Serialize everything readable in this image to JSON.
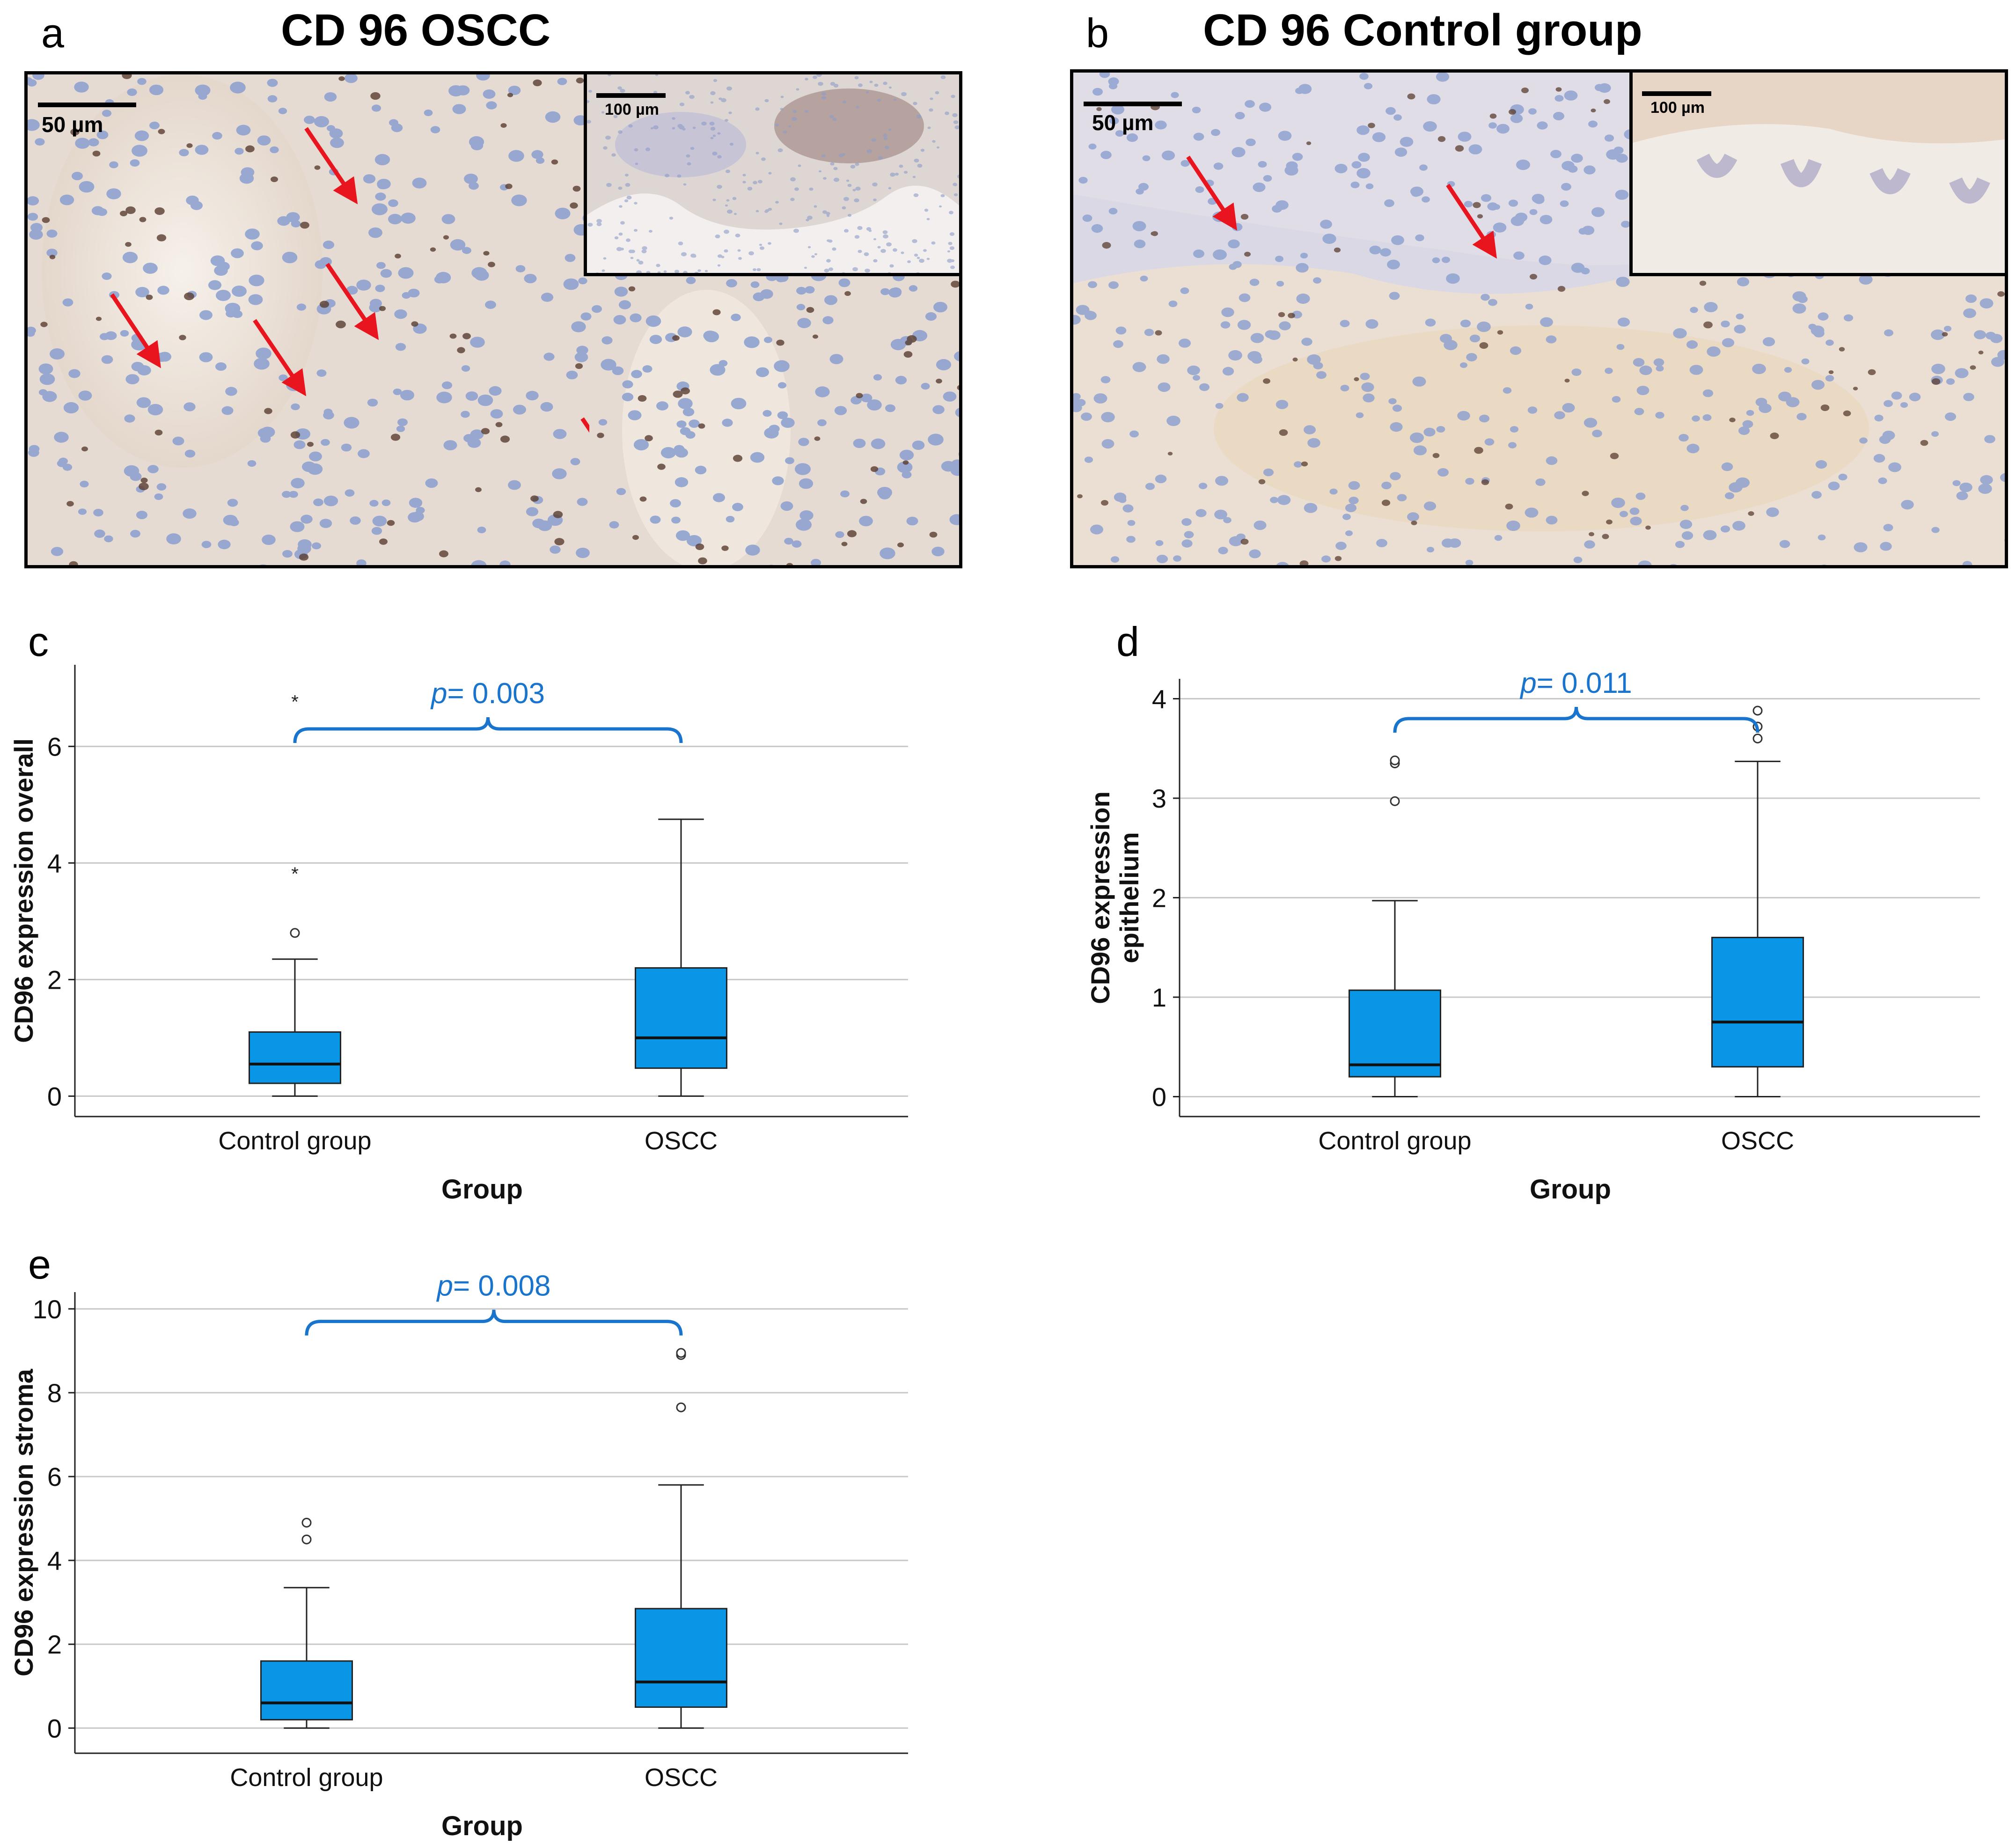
{
  "panels": {
    "a": {
      "letter": "a",
      "title": "CD 96 OSCC",
      "scale_main": "50 µm",
      "scale_inset": "100 µm"
    },
    "b": {
      "letter": "b",
      "title": "CD 96 Control group",
      "scale_main": "50 µm",
      "scale_inset": "100 µm"
    },
    "c": {
      "letter": "c"
    },
    "d": {
      "letter": "d"
    },
    "e": {
      "letter": "e"
    }
  },
  "colors": {
    "box_fill": "#0a96e6",
    "pvalue": "#1874cd",
    "arrow": "#e8141e",
    "tissue_bg": "#ece4dc",
    "nuclei": "#7b93c9",
    "brown_stain": "#6b4a3a"
  },
  "chart_data": [
    {
      "id": "c",
      "type": "box",
      "title": "",
      "xlabel": "Group",
      "ylabel": "CD96 expression overall",
      "categories": [
        "Control group",
        "OSCC"
      ],
      "ylim": [
        -0.35,
        7.4
      ],
      "yticks": [
        0,
        2,
        4,
        6
      ],
      "boxes": [
        {
          "whislo": 0.0,
          "q1": 0.22,
          "med": 0.55,
          "q3": 1.1,
          "whishi": 2.35,
          "outliers": [
            2.8
          ],
          "extremes": [
            3.85,
            6.8
          ]
        },
        {
          "whislo": 0.0,
          "q1": 0.48,
          "med": 1.0,
          "q3": 2.2,
          "whishi": 4.75,
          "outliers": [],
          "extremes": []
        }
      ],
      "bracket_y": 6.3,
      "pvalue": {
        "italic": "p",
        "rest": "= 0.003"
      },
      "grid": true
    },
    {
      "id": "d",
      "type": "box",
      "title": "",
      "xlabel": "Group",
      "ylabel_lines": [
        "CD96 expression",
        "epithelium"
      ],
      "categories": [
        "Control group",
        "OSCC"
      ],
      "ylim": [
        -0.2,
        4.2
      ],
      "yticks": [
        0,
        1,
        2,
        3,
        4
      ],
      "boxes": [
        {
          "whislo": 0.0,
          "q1": 0.2,
          "med": 0.32,
          "q3": 1.07,
          "whishi": 1.97,
          "outliers": [
            2.97,
            3.35,
            3.38
          ],
          "extremes": []
        },
        {
          "whislo": 0.0,
          "q1": 0.3,
          "med": 0.75,
          "q3": 1.6,
          "whishi": 3.37,
          "outliers": [
            3.6,
            3.72,
            3.88
          ],
          "extremes": []
        }
      ],
      "bracket_y": 3.8,
      "pvalue": {
        "italic": "p",
        "rest": "= 0.011"
      },
      "grid": true
    },
    {
      "id": "e",
      "type": "box",
      "title": "",
      "xlabel": "Group",
      "ylabel": "CD96 expression stroma",
      "categories": [
        "Control group",
        "OSCC"
      ],
      "ylim": [
        -0.6,
        10.4
      ],
      "yticks": [
        0,
        2,
        4,
        6,
        8,
        10
      ],
      "boxes": [
        {
          "whislo": 0.0,
          "q1": 0.2,
          "med": 0.6,
          "q3": 1.6,
          "whishi": 3.35,
          "outliers": [
            4.5,
            4.9
          ],
          "extremes": []
        },
        {
          "whislo": 0.0,
          "q1": 0.5,
          "med": 1.1,
          "q3": 2.85,
          "whishi": 5.8,
          "outliers": [
            7.65,
            8.9,
            8.95
          ],
          "extremes": []
        }
      ],
      "bracket_y": 9.7,
      "pvalue": {
        "italic": "p",
        "rest": "= 0.008"
      },
      "grid": true
    }
  ]
}
